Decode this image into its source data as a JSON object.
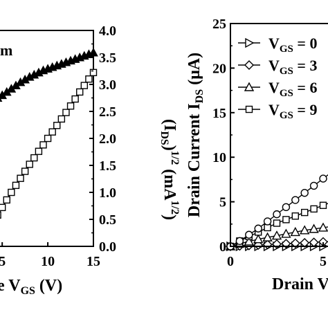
{
  "chart_data": [
    {
      "type": "scatter",
      "panel": "left",
      "title": "",
      "annotation_text": "m",
      "xlabel_visible": "e V",
      "xlabel_sub": "GS",
      "xlabel_tail": " (V)",
      "ylabel_right_main": "(I",
      "ylabel_right_sub": "DS",
      "ylabel_right_mid": ")",
      "ylabel_right_sup": "1/2",
      "ylabel_right_unit": " (mA",
      "ylabel_right_unit_sup": "1/2",
      "ylabel_right_tail": ")",
      "x_ticks": [
        "5",
        "10",
        "15"
      ],
      "x_tick_values": [
        5,
        10,
        15
      ],
      "y2_ticks": [
        "0.0",
        "0.5",
        "1.0",
        "1.5",
        "2.0",
        "2.5",
        "3.0",
        "3.5",
        "4.0"
      ],
      "y2_tick_values": [
        0.0,
        0.5,
        1.0,
        1.5,
        2.0,
        2.5,
        3.0,
        3.5,
        4.0
      ],
      "xlim": [
        4,
        15
      ],
      "y2lim": [
        0,
        4
      ],
      "series": [
        {
          "marker": "filled-triangle",
          "axis": "right",
          "x": [
            4.0,
            4.5,
            5.0,
            5.5,
            6.0,
            6.5,
            7.0,
            7.5,
            8.0,
            8.5,
            9.0,
            9.5,
            10.0,
            10.5,
            11.0,
            11.5,
            12.0,
            12.5,
            13.0,
            13.5,
            14.0,
            14.5,
            15.0
          ],
          "y": [
            2.7,
            2.75,
            2.8,
            2.86,
            2.92,
            2.98,
            3.04,
            3.09,
            3.14,
            3.18,
            3.22,
            3.26,
            3.29,
            3.32,
            3.35,
            3.38,
            3.41,
            3.44,
            3.47,
            3.5,
            3.53,
            3.56,
            3.59
          ]
        },
        {
          "marker": "open-square",
          "axis": "right",
          "x": [
            4.0,
            4.5,
            5.0,
            5.5,
            6.0,
            6.5,
            7.0,
            7.5,
            8.0,
            8.5,
            9.0,
            9.5,
            10.0,
            10.5,
            11.0,
            11.5,
            12.0,
            12.5,
            13.0,
            13.5,
            14.0,
            14.5,
            15.0
          ],
          "y": [
            0.44,
            0.58,
            0.72,
            0.86,
            1.0,
            1.13,
            1.26,
            1.39,
            1.52,
            1.64,
            1.76,
            1.88,
            2.0,
            2.12,
            2.24,
            2.36,
            2.48,
            2.6,
            2.73,
            2.86,
            2.98,
            3.1,
            3.22
          ]
        }
      ]
    },
    {
      "type": "line",
      "panel": "right",
      "title": "",
      "ylabel_main": "Drain Current I",
      "ylabel_sub": "DS",
      "ylabel_tail": " (μA)",
      "xlabel_visible": "Drain V",
      "x_ticks": [
        "0",
        "5"
      ],
      "x_tick_values": [
        0,
        5
      ],
      "y_ticks": [
        "0",
        "5",
        "10",
        "15",
        "20",
        "25"
      ],
      "y_tick_values": [
        0,
        5,
        10,
        15,
        20,
        25
      ],
      "xlim": [
        0,
        8.6
      ],
      "ylim": [
        0,
        25
      ],
      "legend_position": "top-right",
      "series": [
        {
          "name_main": "V",
          "name_sub": "GS",
          "name_tail": " = 0",
          "marker": "right-triangle",
          "x": [
            0,
            0.5,
            1,
            1.5,
            2,
            2.5,
            3,
            3.5,
            4,
            4.5,
            5,
            5.5,
            6,
            6.5,
            7,
            7.5,
            8,
            8.5
          ],
          "y": [
            0,
            0,
            0,
            0,
            0,
            0,
            0,
            0,
            0,
            0,
            0,
            0,
            0,
            0,
            0,
            0,
            0,
            0
          ]
        },
        {
          "name_main": "V",
          "name_sub": "GS",
          "name_tail": " = 3",
          "marker": "diamond",
          "x": [
            0,
            0.5,
            1,
            1.5,
            2,
            2.5,
            3,
            3.5,
            4,
            4.5,
            5,
            5.5,
            6,
            6.5,
            7,
            7.5,
            8,
            8.5
          ],
          "y": [
            0,
            0.05,
            0.1,
            0.15,
            0.2,
            0.25,
            0.3,
            0.35,
            0.4,
            0.45,
            0.5,
            0.55,
            0.6,
            0.65,
            0.7,
            0.75,
            0.8,
            0.85
          ]
        },
        {
          "name_main": "V",
          "name_sub": "GS",
          "name_tail": " = 6",
          "marker": "triangle",
          "x": [
            0,
            0.5,
            1,
            1.5,
            2,
            2.5,
            3,
            3.5,
            4,
            4.5,
            5,
            5.5,
            6,
            6.5,
            7,
            7.5,
            8,
            8.5
          ],
          "y": [
            0,
            0.3,
            0.55,
            0.8,
            1.0,
            1.2,
            1.4,
            1.6,
            1.8,
            1.95,
            2.1,
            2.25,
            2.4,
            2.55,
            2.7,
            2.8,
            2.9,
            3.0
          ]
        },
        {
          "name_main": "V",
          "name_sub": "GS",
          "name_tail": " = 9",
          "marker": "square",
          "x": [
            0,
            0.5,
            1,
            1.5,
            2,
            2.5,
            3,
            3.5,
            4,
            4.5,
            5,
            5.5,
            6,
            6.5,
            7,
            7.5,
            8,
            8.5
          ],
          "y": [
            0,
            0.6,
            1.1,
            1.6,
            2.1,
            2.6,
            3.0,
            3.4,
            3.8,
            4.2,
            4.6,
            5.0,
            5.4,
            5.8,
            6.1,
            6.4,
            6.7,
            7.0
          ]
        },
        {
          "name": "",
          "marker": "circle",
          "x": [
            0,
            0.5,
            1,
            1.5,
            2,
            2.5,
            3,
            3.5,
            4,
            4.5,
            5,
            5.5,
            6,
            6.5,
            7,
            7.5,
            8,
            8.5
          ],
          "y": [
            0,
            0.6,
            1.3,
            2.0,
            2.8,
            3.6,
            4.4,
            5.2,
            6.0,
            6.8,
            7.6,
            8.4,
            9.1,
            9.8,
            10.5,
            11.2,
            11.8,
            12.4
          ]
        }
      ]
    }
  ]
}
